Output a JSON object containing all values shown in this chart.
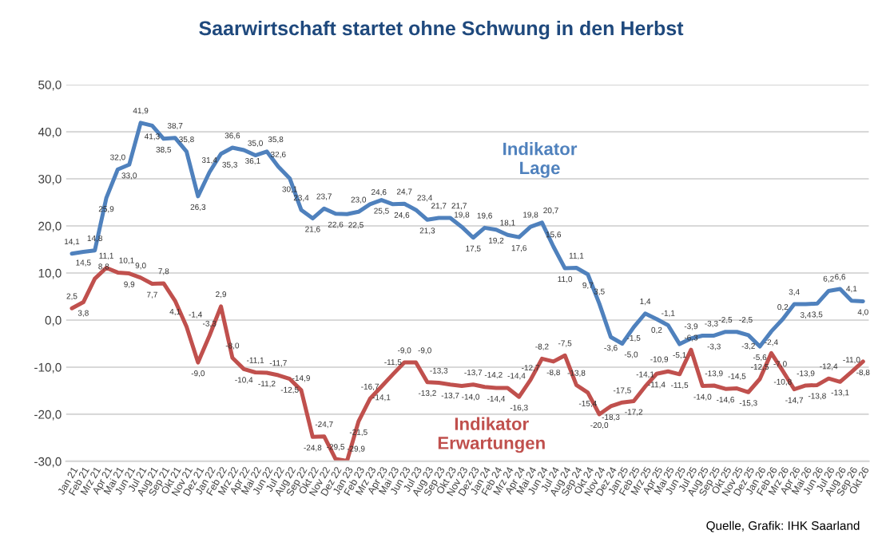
{
  "chart_data": {
    "type": "line",
    "title": "Saarwirtschaft startet ohne Schwung in den Herbst",
    "categories": [
      "Jan 21",
      "Feb 21",
      "Mrz 21",
      "Apr 21",
      "Mai 21",
      "Jun 21",
      "Jul 21",
      "Aug 21",
      "Sep 21",
      "Okt 21",
      "Nov 21",
      "Dez 21",
      "Jan 22",
      "Feb 22",
      "Mrz 22",
      "Apr 22",
      "Mai 22",
      "Jun 22",
      "Jul 22",
      "Aug 22",
      "Sep 22",
      "Okt 22",
      "Nov 22",
      "Dez 22",
      "Jan 23",
      "Feb 23",
      "Mrz 23",
      "Apr 23",
      "Mai 23",
      "Jun 23",
      "Jul 23",
      "Aug 23",
      "Sep 23",
      "Okt 23",
      "Nov 23",
      "Dez 23",
      "Jan 24",
      "Feb 24",
      "Mrz 24",
      "Apr 24",
      "Mai 24",
      "Jun 24",
      "Jul 24",
      "Aug 24",
      "Sep 24",
      "Okt 24",
      "Nov 24",
      "Dez 24",
      "Jan 25",
      "Feb 25",
      "Mrz 25",
      "Apr 25",
      "Mai 25",
      "Jun 25",
      "Jul 25",
      "Aug 25",
      "Sep 25",
      "Okt 25",
      "Nov 25",
      "Dez 25",
      "Jan 26",
      "Feb 26",
      "Mrz 26",
      "Apr 26",
      "Mai 26",
      "Jun 26",
      "Jul 26",
      "Aug 26",
      "Sep 26",
      "Okt 26"
    ],
    "series": [
      {
        "name": "Indikator\nLage",
        "color": "#4f81bd",
        "values": [
          14.1,
          14.5,
          14.8,
          25.9,
          32.0,
          33.0,
          41.9,
          41.3,
          38.5,
          38.7,
          35.8,
          26.3,
          31.4,
          35.3,
          36.6,
          36.1,
          35.0,
          35.8,
          32.6,
          30.1,
          23.4,
          21.6,
          23.7,
          22.6,
          22.5,
          23.0,
          24.6,
          25.5,
          24.6,
          24.7,
          23.4,
          21.3,
          21.7,
          21.7,
          19.8,
          17.5,
          19.6,
          19.2,
          18.1,
          17.6,
          19.8,
          20.7,
          15.6,
          11.0,
          11.1,
          9.7,
          3.5,
          -3.6,
          -5.0,
          -1.5,
          1.4,
          0.2,
          -1.1,
          -5.1,
          -3.9,
          -3.3,
          -3.3,
          -2.5,
          -2.5,
          -3.2,
          -5.6,
          -2.4,
          0.2,
          3.4,
          3.4,
          3.5,
          6.2,
          6.6,
          4.1,
          4.0
        ],
        "value_labels": [
          "14,1",
          "14,5",
          "14,8",
          "25,9",
          "32,0",
          "33,0",
          "41,9",
          "41,3",
          "38,5",
          "38,7",
          "35,8",
          "26,3",
          "31,4",
          "35,3",
          "36,6",
          "36,1",
          "35,0",
          "35,8",
          "32,6",
          "30,1",
          "23,4",
          "21,6",
          "23,7",
          "22,6",
          "22,5",
          "23,0",
          "24,6",
          "25,5",
          "24,6",
          "24,7",
          "23,4",
          "21,3",
          "21,7",
          "21,7",
          "19,8",
          "17,5",
          "19,6",
          "19,2",
          "18,1",
          "17,6",
          "19,8",
          "20,7",
          "15,6",
          "11,0",
          "11,1",
          "9,7",
          "3,5",
          "-3,6",
          "-5,0",
          "-1,5",
          "1,4",
          "0,2",
          "-1,1",
          "-5,1",
          "-3,9",
          "-3,3",
          "-3,3",
          "-2,5",
          "-2,5",
          "-3,2",
          "-5,6",
          "-2,4",
          "0,2",
          "3,4",
          "3,4",
          "3,5",
          "6,2",
          "6,6",
          "4,1",
          "4,0"
        ]
      },
      {
        "name": "Indikator\nErwartungen",
        "color": "#c0504d",
        "values": [
          2.5,
          3.8,
          8.8,
          11.1,
          10.1,
          9.9,
          9.0,
          7.7,
          7.8,
          4.1,
          -1.4,
          -9.0,
          -3.3,
          2.9,
          -8.0,
          -10.4,
          -11.1,
          -11.2,
          -11.7,
          -12.5,
          -14.9,
          -24.8,
          -24.7,
          -29.5,
          -29.9,
          -21.5,
          -16.7,
          -14.1,
          -11.5,
          -9.0,
          -9.0,
          -13.2,
          -13.3,
          -13.7,
          -14.0,
          -13.7,
          -14.2,
          -14.4,
          -14.4,
          -16.3,
          -12.7,
          -8.2,
          -8.8,
          -7.5,
          -13.8,
          -15.4,
          -20.0,
          -18.3,
          -17.5,
          -17.2,
          -14.1,
          -11.4,
          -10.9,
          -11.5,
          -6.3,
          -14.0,
          -13.9,
          -14.6,
          -14.5,
          -15.3,
          -12.5,
          -7.0,
          -10.8,
          -14.7,
          -13.9,
          -13.8,
          -12.4,
          -13.1,
          -11.0,
          -8.8
        ],
        "value_labels": [
          "2,5",
          "3,8",
          "8,8",
          "11,1",
          "10,1",
          "9,9",
          "9,0",
          "7,7",
          "7,8",
          "4,1",
          "-1,4",
          "-9,0",
          "-3,3",
          "2,9",
          "-8,0",
          "-10,4",
          "-11,1",
          "-11,2",
          "-11,7",
          "-12,5",
          "-14,9",
          "-24,8",
          "-24,7",
          "-29,5",
          "-29,9",
          "-21,5",
          "-16,7",
          "-14,1",
          "-11,5",
          "-9,0",
          "-9,0",
          "-13,2",
          "-13,3",
          "-13,7",
          "-14,0",
          "-13,7",
          "-14,2",
          "-14,4",
          "-14,4",
          "-16,3",
          "-12,7",
          "-8,2",
          "-8,8",
          "-7,5",
          "-13,8",
          "-15,4",
          "-20,0",
          "-18,3",
          "-17,5",
          "-17,2",
          "-14,1",
          "-11,4",
          "-10,9",
          "-11,5",
          "-6,3",
          "-14,0",
          "-13,9",
          "-14,6",
          "-14,5",
          "-15,3",
          "-12,5",
          "-7,0",
          "-10,8",
          "-14,7",
          "-13,9",
          "-13,8",
          "-12,4",
          "-13,1",
          "-11,0",
          "-8,8"
        ]
      }
    ],
    "ylim": [
      -30,
      50
    ],
    "yticks": [
      {
        "value": -30,
        "label": "-30,0"
      },
      {
        "value": -20,
        "label": "-20,0"
      },
      {
        "value": -10,
        "label": "-10,0"
      },
      {
        "value": 0,
        "label": "0,0"
      },
      {
        "value": 10,
        "label": "10,0"
      },
      {
        "value": 20,
        "label": "20,0"
      },
      {
        "value": 30,
        "label": "30,0"
      },
      {
        "value": 40,
        "label": "40,0"
      },
      {
        "value": 50,
        "label": "50,0"
      }
    ],
    "grid": "y",
    "marker": "none",
    "line_style": "solid",
    "annotations": [
      "Quelle, Grafik: IHK Saarland"
    ]
  }
}
